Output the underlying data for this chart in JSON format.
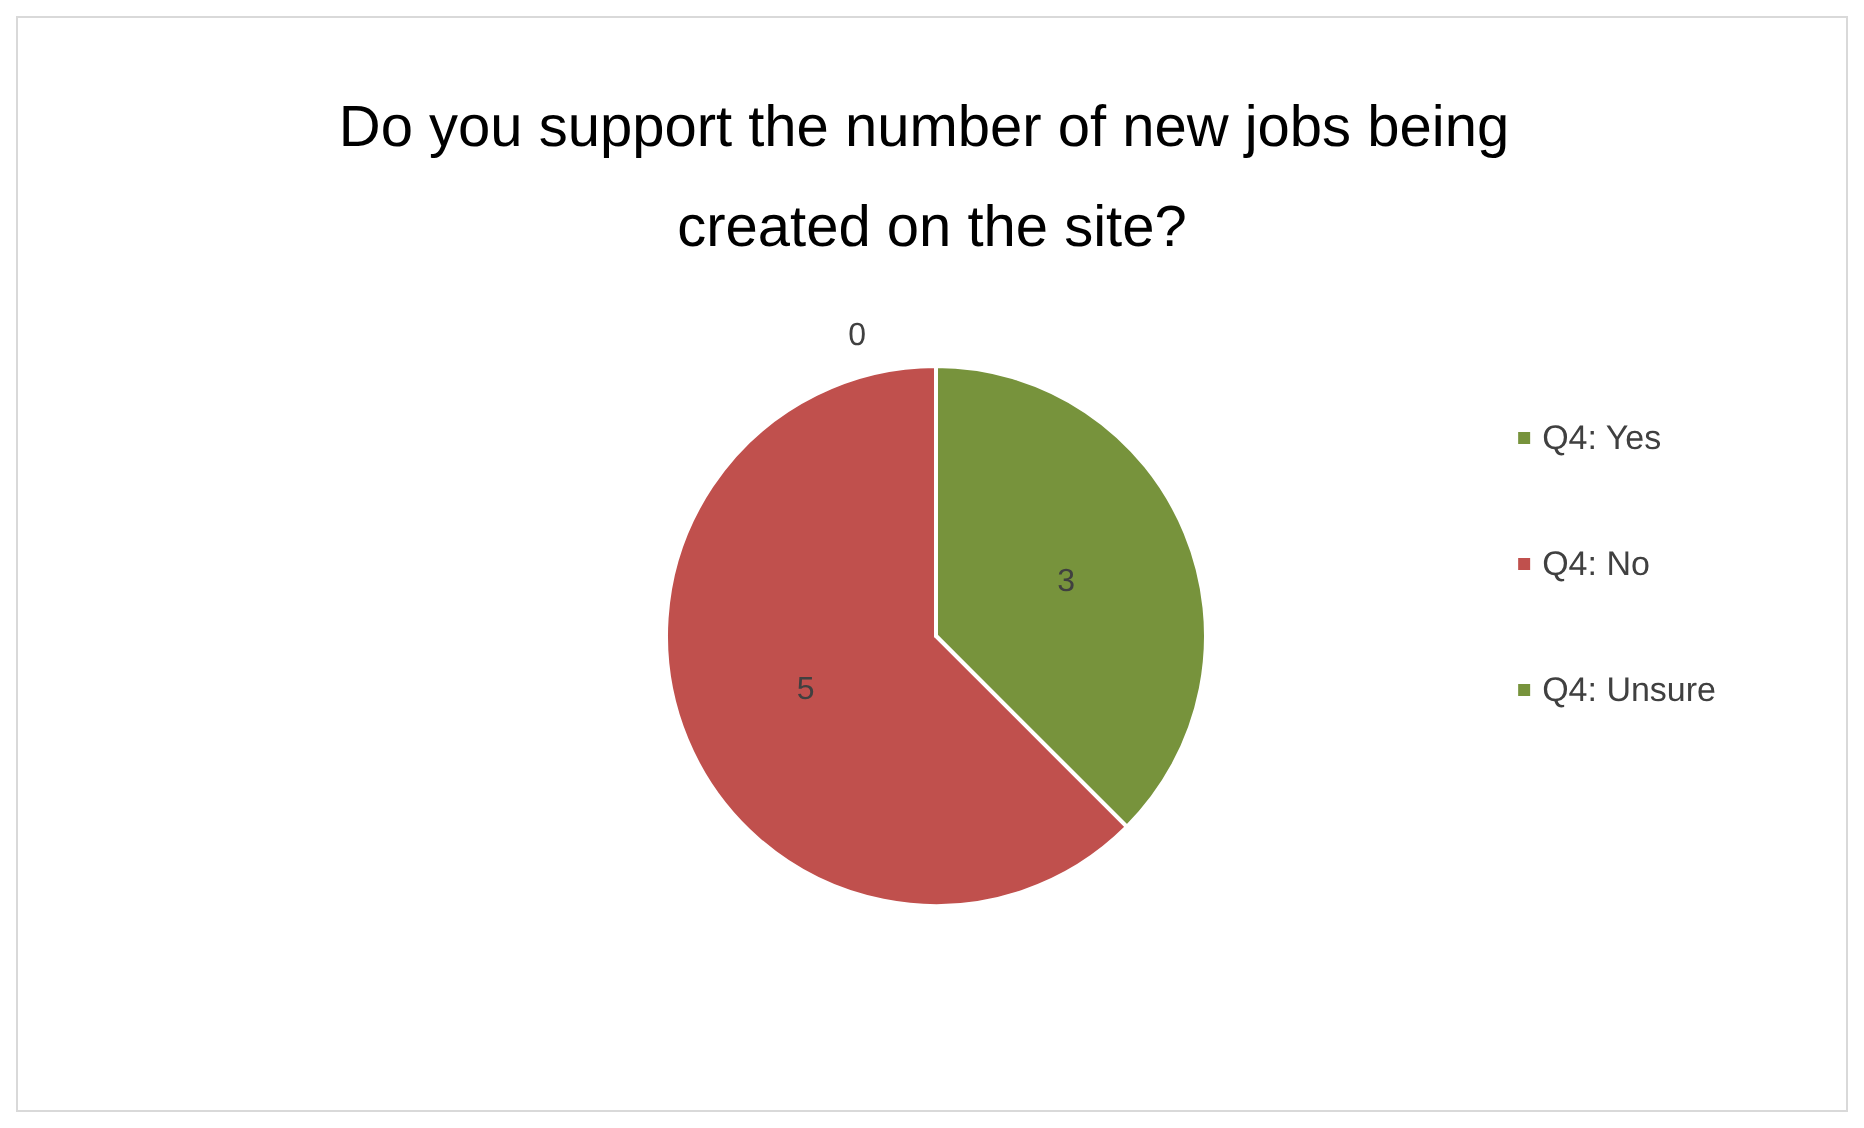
{
  "chart_data": {
    "type": "pie",
    "title": "Do you support the number of new jobs being created on the site?",
    "categories": [
      "Q4: Yes",
      "Q4: No",
      "Q4: Unsure"
    ],
    "values": [
      3,
      5,
      0
    ],
    "colors": [
      "#77933c",
      "#c0504d",
      "#77933c"
    ],
    "value_labels": [
      "3",
      "5",
      "0"
    ],
    "legend": "right"
  }
}
